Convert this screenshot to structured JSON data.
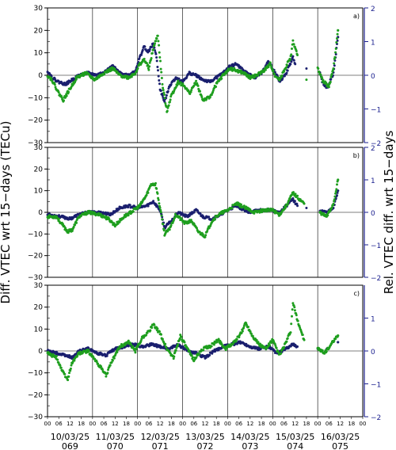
{
  "chart_data": {
    "type": "scatter",
    "ylabel_left": "Diff. VTEC wrt 15−days (TECu)",
    "ylabel_right": "Rel. VTEC diff. wrt 15−days",
    "colors": {
      "series_1": "#1a1f6e",
      "series_2": "#1e9e1e",
      "right_axis": "#1a1f8e",
      "grid": "#000000"
    },
    "x_range_days": [
      0,
      7
    ],
    "hour_tick_labels": [
      "00",
      "06",
      "12",
      "18"
    ],
    "day_labels": [
      {
        "date": "10/03/25",
        "doy": "069"
      },
      {
        "date": "11/03/25",
        "doy": "070"
      },
      {
        "date": "12/03/25",
        "doy": "071"
      },
      {
        "date": "13/03/25",
        "doy": "072"
      },
      {
        "date": "14/03/25",
        "doy": "073"
      },
      {
        "date": "15/03/25",
        "doy": "074"
      },
      {
        "date": "16/03/25",
        "doy": "075"
      }
    ],
    "y_range_left": [
      -30,
      30
    ],
    "y_ticks_left": [
      "30",
      "20",
      "10",
      "0",
      "−10",
      "−20",
      "−30"
    ],
    "y_range_right": [
      -2,
      2
    ],
    "panels": [
      {
        "label": "a)",
        "y_ticks_right": [
          "2",
          "1",
          "0",
          "−1",
          "−2"
        ],
        "series_1": [
          [
            0,
            2
          ],
          [
            0.1,
            -1
          ],
          [
            0.25,
            -3
          ],
          [
            0.4,
            -4
          ],
          [
            0.55,
            -2
          ],
          [
            0.7,
            0
          ],
          [
            0.9,
            1
          ],
          [
            1.1,
            0
          ],
          [
            1.3,
            2
          ],
          [
            1.45,
            4
          ],
          [
            1.6,
            1
          ],
          [
            1.8,
            0
          ],
          [
            1.95,
            2
          ],
          [
            2.05,
            8
          ],
          [
            2.15,
            13
          ],
          [
            2.22,
            10
          ],
          [
            2.35,
            14
          ],
          [
            2.42,
            8
          ],
          [
            2.5,
            -6
          ],
          [
            2.6,
            -12
          ],
          [
            2.7,
            -5
          ],
          [
            2.85,
            -1
          ],
          [
            3.0,
            -3
          ],
          [
            3.15,
            1
          ],
          [
            3.3,
            0
          ],
          [
            3.45,
            -2
          ],
          [
            3.6,
            -3
          ],
          [
            3.75,
            -1
          ],
          [
            3.9,
            1
          ],
          [
            4.05,
            4
          ],
          [
            4.2,
            5
          ],
          [
            4.35,
            2
          ],
          [
            4.5,
            0
          ],
          [
            4.6,
            -1
          ],
          [
            4.75,
            1
          ],
          [
            4.85,
            4
          ],
          [
            4.9,
            6
          ],
          [
            5.0,
            3
          ],
          [
            5.1,
            0
          ],
          [
            5.15,
            -3
          ],
          [
            5.3,
            1
          ],
          [
            5.45,
            8
          ],
          [
            5.5,
            5
          ],
          [
            5.75,
            3
          ],
          [
            6.05,
            1
          ],
          [
            6.1,
            -3
          ],
          [
            6.2,
            -6
          ],
          [
            6.35,
            1
          ],
          [
            6.45,
            17
          ]
        ],
        "series_2": [
          [
            0,
            0
          ],
          [
            0.1,
            -2
          ],
          [
            0.25,
            -8
          ],
          [
            0.35,
            -11
          ],
          [
            0.5,
            -6
          ],
          [
            0.65,
            -1
          ],
          [
            0.85,
            1
          ],
          [
            1.05,
            -2
          ],
          [
            1.25,
            1
          ],
          [
            1.45,
            3
          ],
          [
            1.6,
            0
          ],
          [
            1.8,
            -1
          ],
          [
            1.95,
            1
          ],
          [
            2.05,
            5
          ],
          [
            2.15,
            7
          ],
          [
            2.25,
            3
          ],
          [
            2.35,
            12
          ],
          [
            2.45,
            18
          ],
          [
            2.55,
            -4
          ],
          [
            2.65,
            -16
          ],
          [
            2.75,
            -9
          ],
          [
            2.9,
            -3
          ],
          [
            3.05,
            -5
          ],
          [
            3.15,
            -8
          ],
          [
            3.3,
            -3
          ],
          [
            3.45,
            -11
          ],
          [
            3.6,
            -10
          ],
          [
            3.75,
            -4
          ],
          [
            3.9,
            0
          ],
          [
            4.05,
            3
          ],
          [
            4.2,
            2
          ],
          [
            4.35,
            1
          ],
          [
            4.5,
            -1
          ],
          [
            4.65,
            0
          ],
          [
            4.8,
            2
          ],
          [
            4.95,
            5
          ],
          [
            5.05,
            0
          ],
          [
            5.15,
            -2
          ],
          [
            5.3,
            4
          ],
          [
            5.4,
            8
          ],
          [
            5.45,
            15
          ],
          [
            5.55,
            9
          ],
          [
            5.75,
            -2
          ],
          [
            6.0,
            3
          ],
          [
            6.1,
            -2
          ],
          [
            6.25,
            -5
          ],
          [
            6.35,
            3
          ],
          [
            6.45,
            20
          ]
        ]
      },
      {
        "label": "b)",
        "y_ticks_right": [
          "2",
          "1",
          "0",
          "−1",
          "−2"
        ],
        "series_1": [
          [
            0,
            -1
          ],
          [
            0.3,
            -2
          ],
          [
            0.5,
            -3
          ],
          [
            0.7,
            -1
          ],
          [
            0.9,
            0
          ],
          [
            1.15,
            0
          ],
          [
            1.4,
            -1
          ],
          [
            1.6,
            2
          ],
          [
            1.8,
            3
          ],
          [
            2.0,
            2
          ],
          [
            2.2,
            3
          ],
          [
            2.35,
            5
          ],
          [
            2.5,
            1
          ],
          [
            2.6,
            -7
          ],
          [
            2.75,
            -4
          ],
          [
            2.9,
            0
          ],
          [
            3.1,
            -2
          ],
          [
            3.3,
            1
          ],
          [
            3.45,
            -2
          ],
          [
            3.65,
            -3
          ],
          [
            3.85,
            -1
          ],
          [
            4.0,
            1
          ],
          [
            4.2,
            3
          ],
          [
            4.45,
            0
          ],
          [
            4.7,
            1
          ],
          [
            4.95,
            1
          ],
          [
            5.15,
            0
          ],
          [
            5.35,
            4
          ],
          [
            5.45,
            6
          ],
          [
            5.55,
            3
          ],
          [
            5.75,
            2
          ],
          [
            6.05,
            1
          ],
          [
            6.2,
            0
          ],
          [
            6.35,
            2
          ],
          [
            6.45,
            10
          ]
        ],
        "series_2": [
          [
            0,
            -2
          ],
          [
            0.2,
            -2
          ],
          [
            0.3,
            -5
          ],
          [
            0.45,
            -9
          ],
          [
            0.55,
            -8
          ],
          [
            0.7,
            -2
          ],
          [
            0.9,
            0
          ],
          [
            1.15,
            -1
          ],
          [
            1.35,
            -3
          ],
          [
            1.5,
            -6
          ],
          [
            1.7,
            -2
          ],
          [
            1.85,
            0
          ],
          [
            2.05,
            3
          ],
          [
            2.2,
            8
          ],
          [
            2.3,
            13
          ],
          [
            2.4,
            13
          ],
          [
            2.5,
            2
          ],
          [
            2.6,
            -10
          ],
          [
            2.7,
            -8
          ],
          [
            2.85,
            -1
          ],
          [
            3.05,
            -5
          ],
          [
            3.2,
            -4
          ],
          [
            3.35,
            -9
          ],
          [
            3.5,
            -11
          ],
          [
            3.65,
            -4
          ],
          [
            3.8,
            -1
          ],
          [
            4.0,
            1
          ],
          [
            4.2,
            4
          ],
          [
            4.4,
            2
          ],
          [
            4.6,
            0
          ],
          [
            4.8,
            1
          ],
          [
            5.0,
            1
          ],
          [
            5.15,
            -1
          ],
          [
            5.3,
            3
          ],
          [
            5.45,
            9
          ],
          [
            5.55,
            7
          ],
          [
            5.7,
            4
          ],
          [
            6.05,
            0
          ],
          [
            6.2,
            -2
          ],
          [
            6.35,
            4
          ],
          [
            6.45,
            15
          ]
        ]
      },
      {
        "label": "c)",
        "y_ticks_right": [
          "1",
          "0",
          "−1",
          "−2"
        ],
        "series_1": [
          [
            0,
            0
          ],
          [
            0.2,
            -1
          ],
          [
            0.4,
            -2
          ],
          [
            0.55,
            -3
          ],
          [
            0.7,
            0
          ],
          [
            0.9,
            1
          ],
          [
            1.1,
            -1
          ],
          [
            1.3,
            -2
          ],
          [
            1.5,
            1
          ],
          [
            1.7,
            2
          ],
          [
            1.9,
            3
          ],
          [
            2.1,
            2
          ],
          [
            2.3,
            3
          ],
          [
            2.5,
            2
          ],
          [
            2.7,
            1
          ],
          [
            2.9,
            3
          ],
          [
            3.1,
            0
          ],
          [
            3.3,
            -1
          ],
          [
            3.5,
            -3
          ],
          [
            3.7,
            0
          ],
          [
            3.9,
            2
          ],
          [
            4.1,
            3
          ],
          [
            4.3,
            4
          ],
          [
            4.5,
            2
          ],
          [
            4.7,
            1
          ],
          [
            4.9,
            2
          ],
          [
            5.1,
            -1
          ],
          [
            5.3,
            1
          ],
          [
            5.45,
            3
          ],
          [
            5.55,
            2
          ],
          [
            6.0,
            1
          ],
          [
            6.2,
            1
          ],
          [
            6.45,
            4
          ]
        ],
        "series_2": [
          [
            0,
            -1
          ],
          [
            0.2,
            -3
          ],
          [
            0.35,
            -10
          ],
          [
            0.45,
            -13
          ],
          [
            0.55,
            -5
          ],
          [
            0.7,
            -1
          ],
          [
            0.9,
            0
          ],
          [
            1.05,
            -4
          ],
          [
            1.2,
            -8
          ],
          [
            1.3,
            -11
          ],
          [
            1.45,
            -4
          ],
          [
            1.6,
            2
          ],
          [
            1.8,
            4
          ],
          [
            1.95,
            0
          ],
          [
            2.1,
            6
          ],
          [
            2.25,
            9
          ],
          [
            2.35,
            12
          ],
          [
            2.5,
            8
          ],
          [
            2.65,
            1
          ],
          [
            2.8,
            -3
          ],
          [
            2.95,
            7
          ],
          [
            3.1,
            1
          ],
          [
            3.25,
            -4
          ],
          [
            3.45,
            1
          ],
          [
            3.6,
            2
          ],
          [
            3.8,
            5
          ],
          [
            3.95,
            1
          ],
          [
            4.15,
            4
          ],
          [
            4.3,
            8
          ],
          [
            4.4,
            13
          ],
          [
            4.55,
            7
          ],
          [
            4.7,
            3
          ],
          [
            4.85,
            1
          ],
          [
            5.0,
            5
          ],
          [
            5.15,
            -2
          ],
          [
            5.3,
            4
          ],
          [
            5.4,
            9
          ],
          [
            5.45,
            22
          ],
          [
            5.55,
            14
          ],
          [
            5.7,
            5
          ],
          [
            6.0,
            1
          ],
          [
            6.15,
            -1
          ],
          [
            6.3,
            3
          ],
          [
            6.45,
            7
          ]
        ]
      }
    ]
  }
}
